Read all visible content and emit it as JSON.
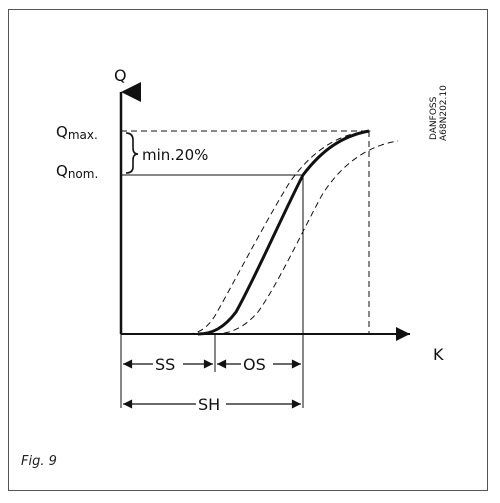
{
  "figure": {
    "axis_y_label": "Q",
    "axis_x_label": "K",
    "q_max_label": "Qmax.",
    "q_max_main": "Q",
    "q_max_sub": "max.",
    "q_nom_label": "Qnom.",
    "q_nom_main": "Q",
    "q_nom_sub": "nom.",
    "min_note": "min.20%",
    "ss_label": "SS",
    "os_label": "OS",
    "sh_label": "SH",
    "stamp_line1": "DANFOSS",
    "stamp_line2": "A68N202.10"
  },
  "caption": "Fig. 9",
  "colors": {
    "ink": "#111111",
    "frame": "#555555"
  }
}
